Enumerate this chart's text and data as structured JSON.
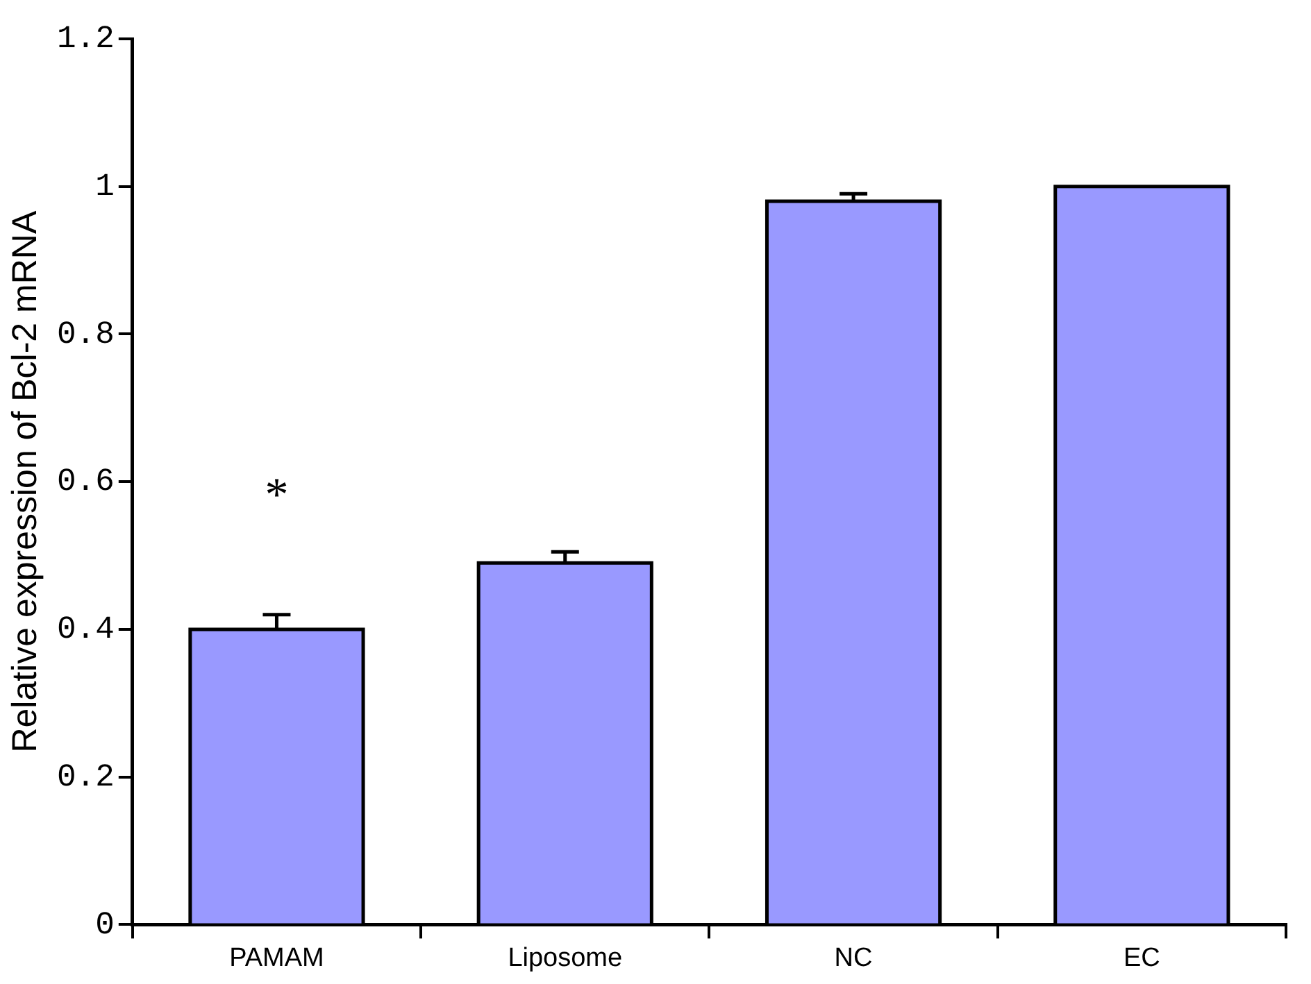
{
  "chart_data": {
    "type": "bar",
    "ylabel": "Relative expression of Bcl-2 mRNA",
    "categories": [
      "PAMAM",
      "Liposome",
      "NC",
      "EC"
    ],
    "values": [
      0.4,
      0.49,
      0.98,
      1.0
    ],
    "errors": [
      0.02,
      0.015,
      0.01,
      null
    ],
    "color": "#9999ff",
    "ylim": [
      0,
      1.2
    ],
    "yticks": [
      0,
      {
        "value": 0.2,
        "label": "0.2"
      },
      {
        "value": 0.4,
        "label": "0.4"
      },
      {
        "value": 0.6,
        "label": "0.6"
      },
      {
        "value": 0.8,
        "label": "0.8"
      },
      1,
      {
        "value": 1.2,
        "label": "1.2"
      }
    ],
    "annotations": [
      "*"
    ],
    "grid": false,
    "legend": false
  }
}
